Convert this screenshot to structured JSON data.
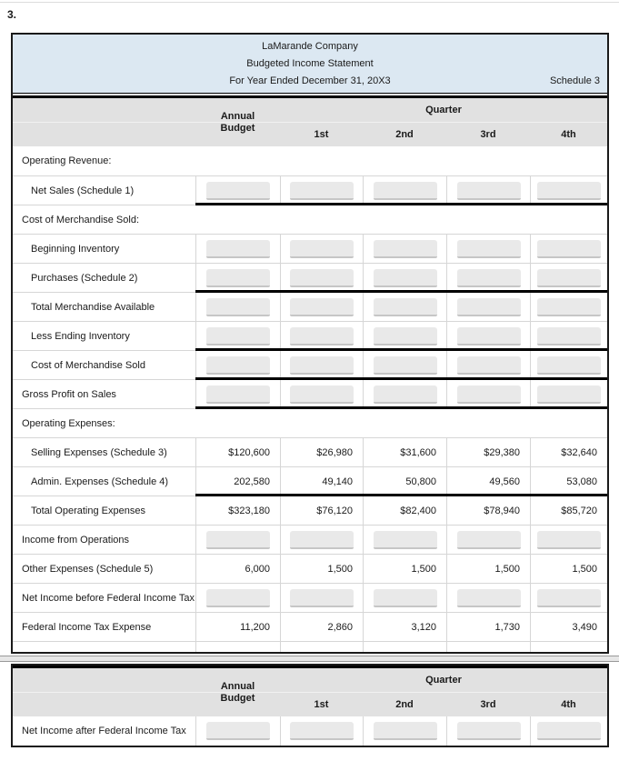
{
  "page": {
    "item_number": "3."
  },
  "colors": {
    "header_blue": "#dce8f2",
    "header_gray": "#e1e1e1",
    "input_gray": "#e9e9e9",
    "input_underline": "#c6c6c6",
    "grid_line": "#d6d6d6",
    "table_border": "#1a1a1a"
  },
  "statement": {
    "title": "LaMarande Company",
    "subtitle": "Budgeted Income Statement",
    "period": "For Year Ended December 31, 20X3",
    "schedule": "Schedule 3",
    "columns": {
      "annual_line1": "Annual",
      "annual_line2": "Budget",
      "quarter_group": "Quarter",
      "quarters": [
        "1st",
        "2nd",
        "3rd",
        "4th"
      ]
    },
    "rows": [
      {
        "label": "Operating Revenue:",
        "type": "section",
        "indent": false
      },
      {
        "label": "Net Sales (Schedule 1)",
        "type": "input",
        "indent": true,
        "rule_below": true
      },
      {
        "label": "Cost of Merchandise Sold:",
        "type": "section",
        "indent": false
      },
      {
        "label": "Beginning Inventory",
        "type": "input",
        "indent": true
      },
      {
        "label": "Purchases (Schedule 2)",
        "type": "input",
        "indent": true,
        "rule_below": true
      },
      {
        "label": "Total Merchandise Available",
        "type": "input",
        "indent": true
      },
      {
        "label": "Less Ending Inventory",
        "type": "input",
        "indent": true,
        "rule_below": true
      },
      {
        "label": "Cost of Merchandise Sold",
        "type": "input",
        "indent": true,
        "rule_below": true
      },
      {
        "label": "Gross Profit on Sales",
        "type": "input",
        "indent": false,
        "rule_below": true
      },
      {
        "label": "Operating Expenses:",
        "type": "section",
        "indent": false
      },
      {
        "label": "Selling Expenses (Schedule 3)",
        "type": "values",
        "indent": true,
        "values": [
          "$120,600",
          "$26,980",
          "$31,600",
          "$29,380",
          "$32,640"
        ]
      },
      {
        "label": "Admin. Expenses (Schedule 4)",
        "type": "values",
        "indent": true,
        "rule_below": true,
        "values": [
          "202,580",
          "49,140",
          "50,800",
          "49,560",
          "53,080"
        ]
      },
      {
        "label": "Total Operating Expenses",
        "type": "values",
        "indent": true,
        "values": [
          "$323,180",
          "$76,120",
          "$82,400",
          "$78,940",
          "$85,720"
        ]
      },
      {
        "label": "Income from Operations",
        "type": "input",
        "indent": false
      },
      {
        "label": "Other Expenses (Schedule 5)",
        "type": "values",
        "indent": false,
        "values": [
          "6,000",
          "1,500",
          "1,500",
          "1,500",
          "1,500"
        ]
      },
      {
        "label": "Net Income before Federal Income Tax",
        "type": "input",
        "indent": false
      },
      {
        "label": "Federal Income Tax Expense",
        "type": "values",
        "indent": false,
        "values": [
          "11,200",
          "2,860",
          "3,120",
          "1,730",
          "3,490"
        ]
      },
      {
        "label": "",
        "type": "spacer",
        "indent": false
      }
    ],
    "continued_rows": [
      {
        "label": "Net Income after Federal Income Tax",
        "type": "input",
        "indent": false
      }
    ]
  }
}
